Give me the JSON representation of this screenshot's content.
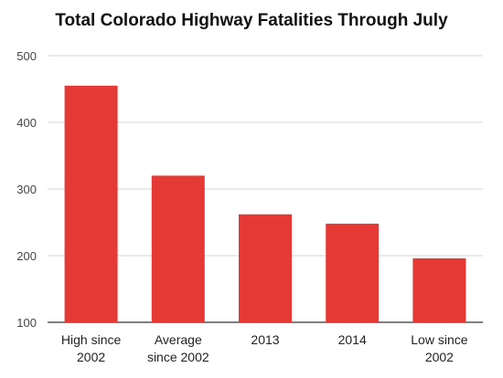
{
  "chart_data": {
    "type": "bar",
    "title": "Total Colorado Highway Fatalities Through July",
    "categories": [
      [
        "High since",
        "2002"
      ],
      [
        "Average",
        "since 2002"
      ],
      [
        "2013"
      ],
      [
        "2014"
      ],
      [
        "Low since",
        "2002"
      ]
    ],
    "values": [
      455,
      320,
      262,
      248,
      196
    ],
    "ylim": [
      100,
      500
    ],
    "yticks": [
      100,
      200,
      300,
      400,
      500
    ],
    "grid": true,
    "bar_color": "#e53935",
    "xlabel": "",
    "ylabel": ""
  }
}
